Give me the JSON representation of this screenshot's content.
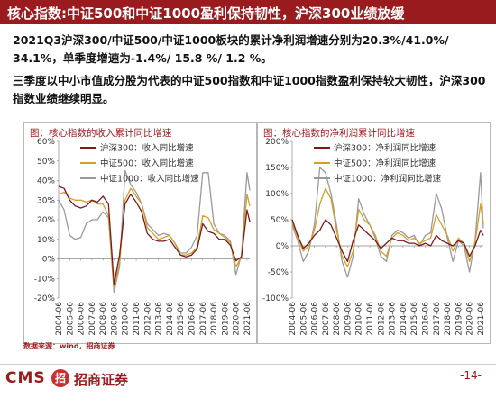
{
  "header": {
    "title": "核心指数:中证500和中证1000盈利保持韧性，沪深300业绩放缓"
  },
  "text": {
    "paragraph1": "2021Q3沪深300/中证500/中证1000板块的累计净利润增速分别为20.3%/41.0%/ 34.1%，单季度增速为-1.4%/ 15.8 %/ 1.2 %。",
    "paragraph2": "三季度以中小市值成分股为代表的中证500指数和中证1000指数盈利保持较大韧性，沪深300指数业绩继续明显。"
  },
  "source": "数据来源：wind，招商证券",
  "footer": {
    "logo_text": "CMS",
    "logo_badge": "招",
    "logo_cn": "招商证券",
    "page": "-14-"
  },
  "colors": {
    "brand": "#9a1b1e",
    "hs300": "#7b1a1e",
    "zz500": "#d2a12b",
    "zz1000": "#9a9a9a"
  },
  "chart_data": [
    {
      "type": "line",
      "title": "图：核心指数的收入累计同比增速",
      "x": [
        "2004-06",
        "2004-12",
        "2005-06",
        "2005-12",
        "2006-06",
        "2006-12",
        "2007-06",
        "2007-12",
        "2008-06",
        "2008-12",
        "2009-06",
        "2009-12",
        "2010-06",
        "2010-12",
        "2011-06",
        "2011-12",
        "2012-06",
        "2012-12",
        "2013-06",
        "2013-12",
        "2014-06",
        "2014-12",
        "2015-06",
        "2015-12",
        "2016-06",
        "2016-12",
        "2017-06",
        "2017-12",
        "2018-06",
        "2018-12",
        "2019-06",
        "2019-12",
        "2020-06",
        "2020-12",
        "2021-06",
        "2021-09"
      ],
      "x_tick_labels": [
        "2004-06",
        "2005-06",
        "2006-06",
        "2007-06",
        "2008-06",
        "2009-06",
        "2010-06",
        "2011-06",
        "2012-06",
        "2013-06",
        "2014-06",
        "2015-06",
        "2016-06",
        "2017-06",
        "2018-06",
        "2019-06",
        "2020-06",
        "2021-06"
      ],
      "y_tick_labels": [
        "-20%",
        "-10%",
        "0%",
        "10%",
        "20%",
        "30%",
        "40%",
        "50%",
        "60%"
      ],
      "ylim": [
        -20,
        60
      ],
      "series": [
        {
          "name": "沪深300：收入同比增速",
          "values": [
            37,
            36,
            30,
            27,
            26,
            27,
            30,
            29,
            32,
            28,
            -13,
            2,
            28,
            33,
            29,
            24,
            13,
            10,
            9,
            9,
            10,
            6,
            2,
            1,
            2,
            5,
            18,
            14,
            13,
            10,
            10,
            7,
            -1,
            1,
            25,
            19
          ]
        },
        {
          "name": "中证500：收入同比增速",
          "values": [
            33,
            34,
            31,
            30,
            30,
            29,
            30,
            28,
            28,
            22,
            -15,
            -2,
            30,
            36,
            32,
            28,
            16,
            13,
            10,
            11,
            12,
            8,
            2,
            2,
            3,
            6,
            22,
            21,
            15,
            13,
            11,
            8,
            -4,
            1,
            33,
            27
          ]
        },
        {
          "name": "中证1000：收入同比增速",
          "values": [
            30,
            25,
            12,
            10,
            11,
            18,
            20,
            20,
            24,
            21,
            -17,
            -4,
            45,
            38,
            34,
            28,
            18,
            15,
            12,
            13,
            12,
            8,
            3,
            3,
            6,
            12,
            44,
            44,
            18,
            13,
            12,
            9,
            -8,
            2,
            44,
            35
          ]
        }
      ]
    },
    {
      "type": "line",
      "title": "图：核心指数的净利润累计同比增速",
      "x": [
        "2004-06",
        "2004-12",
        "2005-06",
        "2005-12",
        "2006-06",
        "2006-12",
        "2007-06",
        "2007-12",
        "2008-06",
        "2008-12",
        "2009-06",
        "2009-12",
        "2010-06",
        "2010-12",
        "2011-06",
        "2011-12",
        "2012-06",
        "2012-12",
        "2013-06",
        "2013-12",
        "2014-06",
        "2014-12",
        "2015-06",
        "2015-12",
        "2016-06",
        "2016-12",
        "2017-06",
        "2017-12",
        "2018-06",
        "2018-12",
        "2019-06",
        "2019-12",
        "2020-06",
        "2020-12",
        "2021-06",
        "2021-09"
      ],
      "x_tick_labels": [
        "2004-06",
        "2005-06",
        "2006-06",
        "2007-06",
        "2008-06",
        "2009-06",
        "2010-06",
        "2011-06",
        "2012-06",
        "2013-06",
        "2014-06",
        "2015-06",
        "2016-06",
        "2017-06",
        "2018-06",
        "2019-06",
        "2020-06",
        "2021-06"
      ],
      "y_tick_labels": [
        "-100%",
        "-50%",
        "0%",
        "50%",
        "100%",
        "150%",
        "200%"
      ],
      "ylim": [
        -100,
        200
      ],
      "series": [
        {
          "name": "沪深300：净利润同比增速",
          "values": [
            50,
            20,
            -5,
            5,
            20,
            30,
            50,
            40,
            15,
            -10,
            -30,
            10,
            40,
            30,
            20,
            10,
            -5,
            5,
            15,
            10,
            10,
            5,
            5,
            0,
            5,
            0,
            20,
            10,
            5,
            0,
            10,
            5,
            -20,
            0,
            30,
            20
          ]
        },
        {
          "name": "中证500：净利润同比增速",
          "values": [
            45,
            15,
            -10,
            0,
            30,
            80,
            110,
            90,
            30,
            -20,
            -40,
            -10,
            70,
            50,
            40,
            20,
            -10,
            -20,
            15,
            25,
            20,
            10,
            15,
            5,
            10,
            15,
            60,
            40,
            20,
            -10,
            15,
            5,
            -30,
            5,
            80,
            41
          ]
        },
        {
          "name": "中证1000：净利润同比增速",
          "values": [
            40,
            10,
            -30,
            -10,
            40,
            150,
            140,
            100,
            40,
            -30,
            -60,
            -20,
            90,
            60,
            40,
            15,
            -20,
            -30,
            20,
            30,
            25,
            15,
            20,
            0,
            20,
            25,
            100,
            70,
            15,
            -30,
            10,
            0,
            -50,
            10,
            140,
            34
          ]
        }
      ]
    }
  ]
}
